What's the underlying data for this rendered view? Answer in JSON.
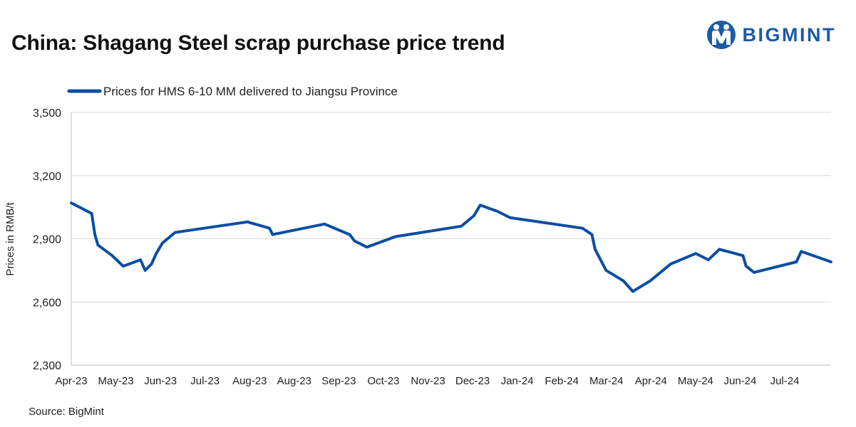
{
  "title": "China: Shagang Steel scrap purchase price trend",
  "brand": "BIGMINT",
  "source": "Source: BigMint",
  "colors": {
    "line": "#0b4ea2",
    "brand": "#1b5aa8",
    "grid": "#d9d9d9"
  },
  "chart_data": {
    "type": "line",
    "title": "China: Shagang Steel scrap purchase price trend",
    "ylabel": "Prices in RMB/t",
    "xlabel": "",
    "ylim": [
      2300,
      3500
    ],
    "yticks": [
      2300,
      2600,
      2900,
      3200,
      3500
    ],
    "ytick_labels": [
      "2,300",
      "2,600",
      "2,900",
      "3,200",
      "3,500"
    ],
    "x_range": [
      "2023-04-01",
      "2024-07-27"
    ],
    "xtick_labels": [
      "Apr-23",
      "May-23",
      "Jun-23",
      "Jul-23",
      "Aug-23",
      "Aug-23",
      "Sep-23",
      "Oct-23",
      "Nov-23",
      "Dec-23",
      "Jan-24",
      "Feb-24",
      "Mar-24",
      "Apr-24",
      "May-24",
      "Jun-24",
      "Jul-24"
    ],
    "grid": true,
    "legend_position": "top-left",
    "series": [
      {
        "name": "Prices for HMS 6-10 MM delivered to Jiangsu Province",
        "points": [
          [
            "2023-04-01",
            3070
          ],
          [
            "2023-04-14",
            3020
          ],
          [
            "2023-04-16",
            2920
          ],
          [
            "2023-04-18",
            2870
          ],
          [
            "2023-04-27",
            2820
          ],
          [
            "2023-05-04",
            2770
          ],
          [
            "2023-05-15",
            2800
          ],
          [
            "2023-05-18",
            2750
          ],
          [
            "2023-05-22",
            2780
          ],
          [
            "2023-05-25",
            2830
          ],
          [
            "2023-05-29",
            2880
          ],
          [
            "2023-06-06",
            2930
          ],
          [
            "2023-07-22",
            2980
          ],
          [
            "2023-08-05",
            2950
          ],
          [
            "2023-08-07",
            2920
          ],
          [
            "2023-09-09",
            2970
          ],
          [
            "2023-09-25",
            2920
          ],
          [
            "2023-09-28",
            2890
          ],
          [
            "2023-10-06",
            2860
          ],
          [
            "2023-10-24",
            2910
          ],
          [
            "2023-12-05",
            2960
          ],
          [
            "2023-12-13",
            3010
          ],
          [
            "2023-12-17",
            3060
          ],
          [
            "2023-12-28",
            3030
          ],
          [
            "2024-01-05",
            3000
          ],
          [
            "2024-02-20",
            2950
          ],
          [
            "2024-02-26",
            2920
          ],
          [
            "2024-02-28",
            2850
          ],
          [
            "2024-03-06",
            2750
          ],
          [
            "2024-03-17",
            2700
          ],
          [
            "2024-03-23",
            2650
          ],
          [
            "2024-04-03",
            2700
          ],
          [
            "2024-04-16",
            2780
          ],
          [
            "2024-05-02",
            2830
          ],
          [
            "2024-05-10",
            2800
          ],
          [
            "2024-05-17",
            2850
          ],
          [
            "2024-06-01",
            2820
          ],
          [
            "2024-06-03",
            2770
          ],
          [
            "2024-06-08",
            2740
          ],
          [
            "2024-07-05",
            2790
          ],
          [
            "2024-07-08",
            2840
          ],
          [
            "2024-07-27",
            2790
          ]
        ]
      }
    ]
  }
}
